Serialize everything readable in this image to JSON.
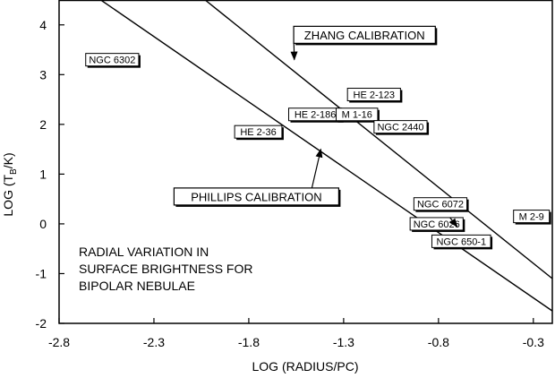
{
  "chart_data": {
    "type": "scatter",
    "xlabel": "LOG (RADIUS/PC)",
    "ylabel": "LOG (T",
    "ylabel_sub": "B",
    "ylabel_tail": "/K)",
    "xlim": [
      -2.8,
      -0.2
    ],
    "ylim": [
      -2,
      4.5
    ],
    "xticks": [
      -2.8,
      -2.3,
      -1.8,
      -1.3,
      -0.8,
      -0.3
    ],
    "yticks": [
      -2,
      -1,
      0,
      1,
      2,
      3,
      4
    ],
    "xtick_labels": [
      "-2.8",
      "-2.3",
      "-1.8",
      "-1.3",
      "-0.8",
      "-0.3"
    ],
    "ytick_labels": [
      "-2",
      "-1",
      "0",
      "1",
      "2",
      "3",
      "4"
    ],
    "grid": false,
    "series": [
      {
        "name": "ZHANG CALIBRATION",
        "kind": "line",
        "points": [
          [
            -2.03,
            4.5
          ],
          [
            -0.2,
            -1.1
          ]
        ]
      },
      {
        "name": "PHILLIPS CALIBRATION",
        "kind": "line",
        "points": [
          [
            -2.58,
            4.5
          ],
          [
            -0.2,
            -1.75
          ]
        ]
      }
    ],
    "objects": [
      {
        "label": "NGC 6302",
        "x": -2.52,
        "y": 3.3
      },
      {
        "label": "HE 2-123",
        "x": -1.14,
        "y": 2.6
      },
      {
        "label": "HE 2-186",
        "x": -1.45,
        "y": 2.2
      },
      {
        "label": "M 1-16",
        "x": -1.23,
        "y": 2.2
      },
      {
        "label": "NGC 2440",
        "x": -1.0,
        "y": 1.95
      },
      {
        "label": "HE 2-36",
        "x": -1.75,
        "y": 1.85
      },
      {
        "label": "NGC 6072",
        "x": -0.79,
        "y": 0.4
      },
      {
        "label": "NGC 6026",
        "x": -0.81,
        "y": 0.0
      },
      {
        "label": "NGC 650-1",
        "x": -0.68,
        "y": -0.35
      },
      {
        "label": "M 2-9",
        "x": -0.31,
        "y": 0.15
      }
    ],
    "callouts": [
      {
        "text": "ZHANG CALIBRATION",
        "x": -1.19,
        "y": 3.8,
        "arrow_to": [
          -1.56,
          3.3
        ]
      },
      {
        "text": "PHILLIPS CALIBRATION",
        "x": -1.76,
        "y": 0.55,
        "arrow_to": [
          -1.42,
          1.5
        ]
      }
    ],
    "note": [
      "RADIAL VARIATION IN",
      "SURFACE BRIGHTNESS FOR",
      "BIPOLAR NEBULAE"
    ]
  }
}
